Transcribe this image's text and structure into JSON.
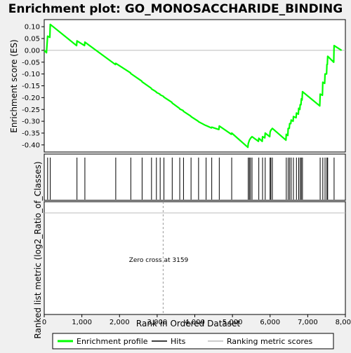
{
  "chart_data": {
    "type": "line",
    "title": "Enrichment plot: GO_MONOSACCHARIDE_BINDING",
    "ylabel_top": "Enrichment score (ES)",
    "ylabel_bottom": "Ranked list metric (log2_Ratio_of_Classes)",
    "xlabel": "Rank in Ordered Dataset",
    "xlim": [
      0,
      8000
    ],
    "ylim_es": [
      -0.43,
      0.13
    ],
    "y_ticks": [
      "0.10",
      "0.05",
      "0.00",
      "-0.05",
      "-0.10",
      "-0.15",
      "-0.20",
      "-0.25",
      "-0.30",
      "-0.35",
      "-0.40"
    ],
    "y_tick_values": [
      0.1,
      0.05,
      0.0,
      -0.05,
      -0.1,
      -0.15,
      -0.2,
      -0.25,
      -0.3,
      -0.35,
      -0.4
    ],
    "x_ticks": [
      "0",
      "1,000",
      "2,000",
      "3,000",
      "4,000",
      "5,000",
      "6,000",
      "7,000",
      "8,000"
    ],
    "x_tick_values": [
      0,
      1000,
      2000,
      3000,
      4000,
      5000,
      6000,
      7000,
      8000
    ],
    "zero_cross_label": "Zero cross at 3159",
    "zero_cross": 3159,
    "legend": [
      {
        "label": "Enrichment profile",
        "color": "#00ff00"
      },
      {
        "label": "Hits",
        "color": "#000000"
      },
      {
        "label": "Ranking metric scores",
        "color": "#bbbbbb"
      }
    ],
    "hits": [
      90,
      160,
      870,
      1080,
      1900,
      2300,
      2600,
      2850,
      2980,
      3080,
      3180,
      3400,
      3600,
      3700,
      3900,
      4100,
      4300,
      4450,
      4650,
      4980,
      5420,
      5450,
      5480,
      5520,
      5700,
      5800,
      5870,
      6000,
      6020,
      6060,
      6430,
      6480,
      6520,
      6560,
      6620,
      6700,
      6760,
      6800,
      6830,
      6860,
      7330,
      7400,
      7460,
      7510,
      7530,
      7700
    ],
    "es_points": [
      [
        0,
        0.0
      ],
      [
        60,
        -0.01
      ],
      [
        90,
        0.06
      ],
      [
        150,
        0.055
      ],
      [
        160,
        0.11
      ],
      [
        860,
        0.02
      ],
      [
        870,
        0.04
      ],
      [
        1070,
        0.02
      ],
      [
        1080,
        0.035
      ],
      [
        1890,
        -0.06
      ],
      [
        1900,
        -0.055
      ],
      [
        2290,
        -0.095
      ],
      [
        2300,
        -0.098
      ],
      [
        2590,
        -0.13
      ],
      [
        2600,
        -0.133
      ],
      [
        2840,
        -0.16
      ],
      [
        2850,
        -0.163
      ],
      [
        2970,
        -0.175
      ],
      [
        2980,
        -0.178
      ],
      [
        3070,
        -0.185
      ],
      [
        3080,
        -0.188
      ],
      [
        3170,
        -0.195
      ],
      [
        3180,
        -0.198
      ],
      [
        3390,
        -0.22
      ],
      [
        3400,
        -0.223
      ],
      [
        3590,
        -0.245
      ],
      [
        3600,
        -0.248
      ],
      [
        3690,
        -0.255
      ],
      [
        3700,
        -0.258
      ],
      [
        3890,
        -0.278
      ],
      [
        3900,
        -0.28
      ],
      [
        4090,
        -0.3
      ],
      [
        4100,
        -0.302
      ],
      [
        4290,
        -0.318
      ],
      [
        4300,
        -0.318
      ],
      [
        4440,
        -0.328
      ],
      [
        4450,
        -0.325
      ],
      [
        4640,
        -0.335
      ],
      [
        4650,
        -0.32
      ],
      [
        4970,
        -0.355
      ],
      [
        4980,
        -0.35
      ],
      [
        5410,
        -0.41
      ],
      [
        5420,
        -0.395
      ],
      [
        5450,
        -0.38
      ],
      [
        5480,
        -0.372
      ],
      [
        5520,
        -0.365
      ],
      [
        5690,
        -0.385
      ],
      [
        5700,
        -0.372
      ],
      [
        5790,
        -0.385
      ],
      [
        5800,
        -0.365
      ],
      [
        5860,
        -0.37
      ],
      [
        5870,
        -0.35
      ],
      [
        5990,
        -0.365
      ],
      [
        6000,
        -0.345
      ],
      [
        6020,
        -0.338
      ],
      [
        6060,
        -0.33
      ],
      [
        6420,
        -0.38
      ],
      [
        6430,
        -0.355
      ],
      [
        6470,
        -0.36
      ],
      [
        6480,
        -0.33
      ],
      [
        6510,
        -0.33
      ],
      [
        6520,
        -0.31
      ],
      [
        6550,
        -0.31
      ],
      [
        6560,
        -0.295
      ],
      [
        6610,
        -0.3
      ],
      [
        6620,
        -0.28
      ],
      [
        6690,
        -0.285
      ],
      [
        6700,
        -0.265
      ],
      [
        6750,
        -0.27
      ],
      [
        6760,
        -0.245
      ],
      [
        6790,
        -0.25
      ],
      [
        6800,
        -0.23
      ],
      [
        6820,
        -0.23
      ],
      [
        6830,
        -0.205
      ],
      [
        6850,
        -0.21
      ],
      [
        6860,
        -0.175
      ],
      [
        7320,
        -0.235
      ],
      [
        7330,
        -0.185
      ],
      [
        7390,
        -0.19
      ],
      [
        7400,
        -0.135
      ],
      [
        7450,
        -0.14
      ],
      [
        7460,
        -0.1
      ],
      [
        7500,
        -0.1
      ],
      [
        7510,
        -0.06
      ],
      [
        7520,
        -0.06
      ],
      [
        7530,
        -0.025
      ],
      [
        7690,
        -0.05
      ],
      [
        7700,
        0.02
      ],
      [
        7900,
        0.0
      ]
    ],
    "metric_band_colors": [
      "#ff3333",
      "#ff6a6a",
      "#ff9a9a",
      "#ffc8e4",
      "#dcdcf8",
      "#b4b4f4",
      "#7a7af0",
      "#4848e0",
      "#1010c0"
    ]
  }
}
